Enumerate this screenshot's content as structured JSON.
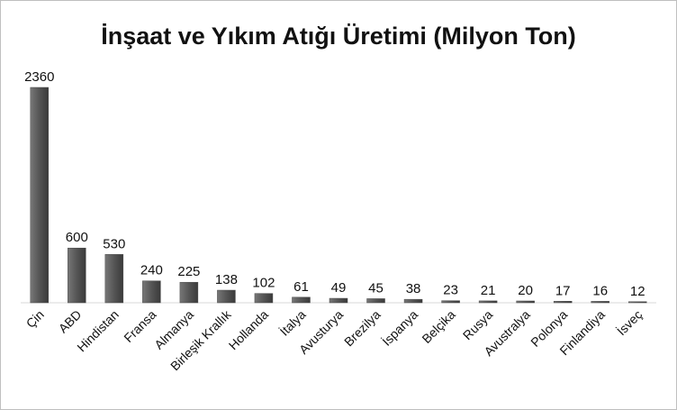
{
  "chart_data": {
    "type": "bar",
    "title": "İnşaat ve Yıkım Atığı Üretimi (Milyon Ton)",
    "categories": [
      "Çin",
      "ABD",
      "Hindistan",
      "Fransa",
      "Almanya",
      "Birleşik Krallık",
      "Hollanda",
      "İtalya",
      "Avusturya",
      "Brezilya",
      "İspanya",
      "Belçika",
      "Rusya",
      "Avustralya",
      "Polonya",
      "Finlandiya",
      "İsveç"
    ],
    "values": [
      2360,
      600,
      530,
      240,
      225,
      138,
      102,
      61,
      49,
      45,
      38,
      23,
      21,
      20,
      17,
      16,
      12
    ],
    "color": "#4d4d4d"
  }
}
